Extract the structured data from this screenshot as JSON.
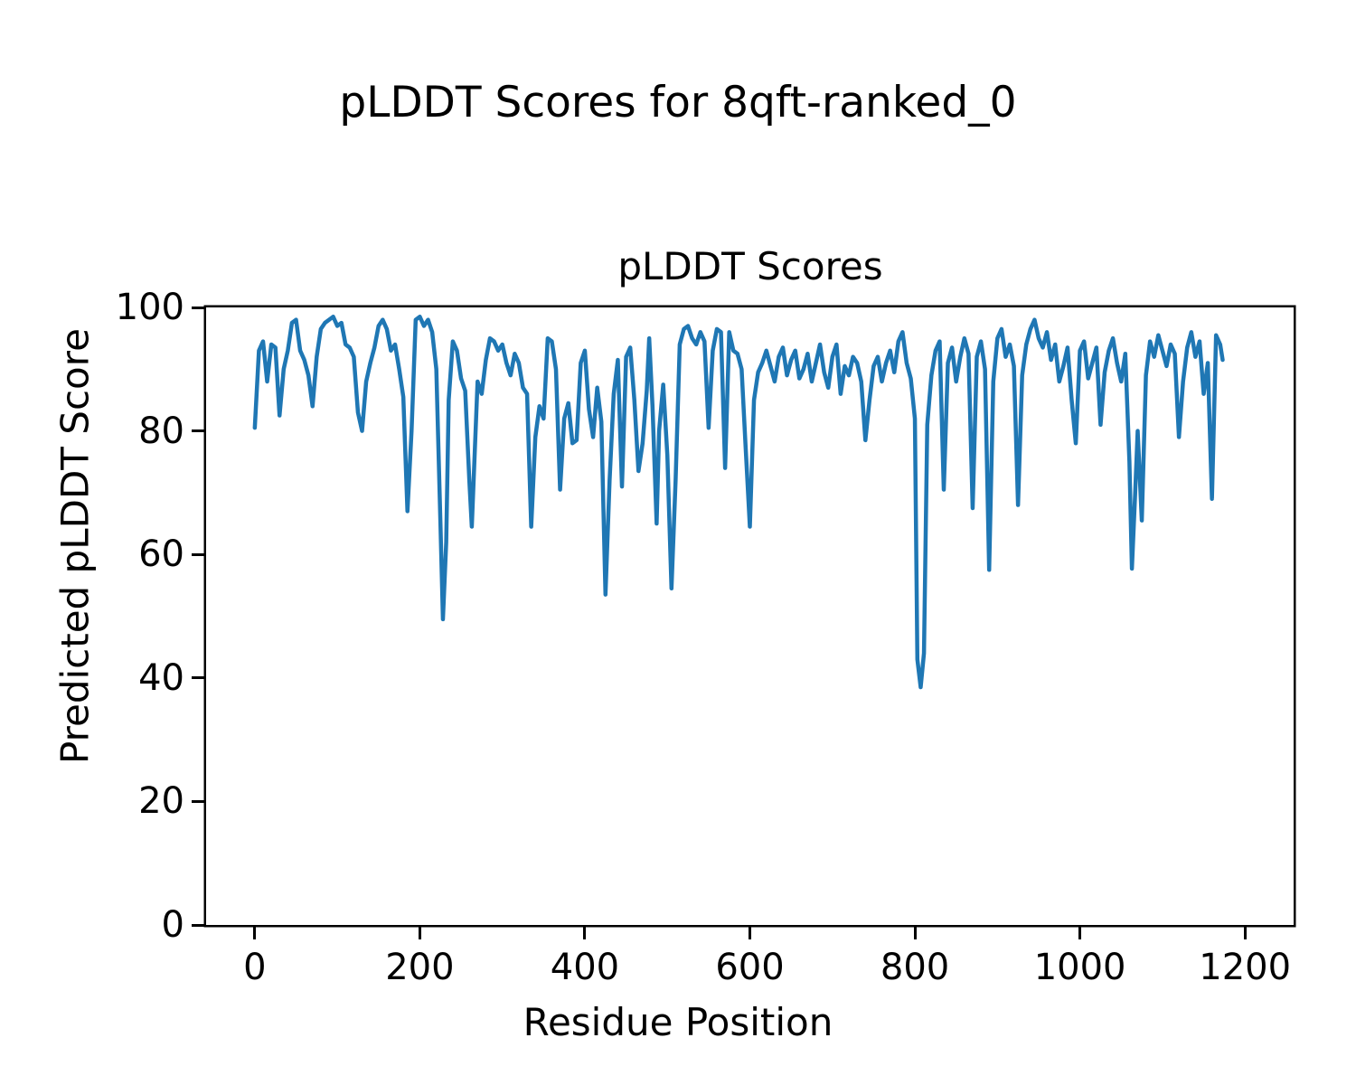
{
  "figure": {
    "suptitle": "pLDDT Scores for 8qft-ranked_0",
    "background_color": "#ffffff",
    "text_color": "#000000"
  },
  "chart_data": {
    "type": "line",
    "title": "pLDDT Scores",
    "xlabel": "Residue Position",
    "ylabel": "Predicted pLDDT Score",
    "x_ticks": [
      0,
      200,
      400,
      600,
      800,
      1000,
      1200
    ],
    "y_ticks": [
      0,
      20,
      40,
      60,
      80,
      100
    ],
    "xlim": [
      -59,
      1259
    ],
    "ylim": [
      0,
      100
    ],
    "grid": false,
    "legend": "none",
    "line_color": "#1f77b4",
    "line_width": 4.5,
    "series": [
      {
        "name": "pLDDT",
        "x": [
          0,
          5,
          10,
          15,
          20,
          25,
          30,
          35,
          40,
          45,
          50,
          55,
          60,
          65,
          70,
          75,
          80,
          85,
          90,
          95,
          100,
          105,
          110,
          115,
          120,
          125,
          130,
          135,
          140,
          145,
          150,
          155,
          160,
          165,
          170,
          175,
          180,
          185,
          190,
          195,
          200,
          205,
          210,
          215,
          220,
          225,
          228,
          232,
          235,
          240,
          245,
          250,
          255,
          260,
          263,
          267,
          270,
          275,
          280,
          285,
          290,
          295,
          300,
          305,
          310,
          315,
          320,
          325,
          330,
          335,
          340,
          345,
          350,
          355,
          360,
          365,
          370,
          375,
          380,
          385,
          390,
          395,
          400,
          405,
          410,
          415,
          420,
          425,
          430,
          435,
          440,
          445,
          450,
          455,
          460,
          465,
          470,
          475,
          478,
          482,
          487,
          490,
          495,
          500,
          505,
          510,
          515,
          520,
          525,
          530,
          535,
          540,
          545,
          550,
          555,
          560,
          565,
          570,
          575,
          580,
          585,
          590,
          595,
          600,
          605,
          610,
          615,
          620,
          625,
          630,
          635,
          640,
          645,
          650,
          655,
          660,
          665,
          670,
          675,
          680,
          685,
          690,
          695,
          700,
          705,
          710,
          715,
          720,
          725,
          730,
          735,
          740,
          745,
          750,
          755,
          760,
          765,
          770,
          775,
          780,
          785,
          790,
          795,
          800,
          803,
          807,
          811,
          815,
          820,
          825,
          830,
          835,
          840,
          845,
          850,
          855,
          860,
          865,
          870,
          875,
          880,
          885,
          890,
          895,
          900,
          905,
          910,
          915,
          920,
          925,
          930,
          935,
          940,
          945,
          950,
          955,
          960,
          965,
          970,
          975,
          980,
          985,
          990,
          995,
          1000,
          1005,
          1010,
          1015,
          1020,
          1025,
          1030,
          1035,
          1040,
          1045,
          1050,
          1055,
          1060,
          1063,
          1067,
          1070,
          1075,
          1080,
          1085,
          1090,
          1095,
          1100,
          1105,
          1110,
          1115,
          1120,
          1125,
          1130,
          1135,
          1140,
          1145,
          1150,
          1155,
          1160,
          1165,
          1170,
          1173
        ],
        "y": [
          80.5,
          93,
          94.5,
          88,
          94,
          93.5,
          82.5,
          90,
          93,
          97.5,
          98,
          93,
          91.5,
          89,
          84,
          92,
          96.5,
          97.5,
          98,
          98.5,
          97,
          97.5,
          94,
          93.5,
          92,
          83,
          80,
          88,
          91,
          93.5,
          97,
          98,
          96.5,
          93,
          94,
          90,
          85.5,
          67,
          80,
          98,
          98.5,
          97,
          98,
          96,
          90,
          65,
          49.5,
          62,
          85,
          94.5,
          93,
          88.5,
          86.5,
          72,
          64.5,
          78,
          88,
          86,
          91.5,
          95,
          94.5,
          93,
          94,
          91,
          89,
          92.5,
          91,
          87,
          86,
          64.5,
          79,
          84,
          82,
          95,
          94.5,
          90,
          70.5,
          82,
          84.5,
          78,
          78.5,
          91,
          93,
          83.5,
          79,
          87,
          81.5,
          53.5,
          72,
          86,
          91.5,
          71,
          92,
          93.5,
          85,
          73.5,
          78,
          86.5,
          95,
          84,
          65,
          80,
          87.5,
          76,
          54.5,
          72,
          94,
          96.5,
          97,
          95,
          94,
          96,
          94.5,
          80.5,
          93,
          96.5,
          96,
          74,
          96,
          93,
          92.5,
          90,
          77,
          64.5,
          85,
          89.5,
          91,
          93,
          90.5,
          88,
          92,
          93.5,
          89,
          91.5,
          93,
          88.5,
          90,
          92.5,
          88,
          91,
          94,
          89.5,
          87,
          92,
          94,
          86,
          90.5,
          89,
          92,
          91,
          88,
          78.5,
          85,
          90.5,
          92,
          88,
          91,
          93,
          89.5,
          94.5,
          96,
          91,
          88.5,
          82,
          43,
          38.5,
          44,
          81,
          89,
          93,
          94.5,
          70.5,
          91,
          93.5,
          88,
          92,
          95,
          92.5,
          67.5,
          92,
          94.5,
          90,
          57.5,
          88,
          95,
          96.5,
          92,
          94,
          90.5,
          68,
          89,
          94,
          96.5,
          98,
          95,
          93.5,
          96,
          91.5,
          94,
          88,
          90.5,
          93.5,
          85,
          78,
          93,
          94.5,
          88.5,
          91,
          93.5,
          81,
          89.5,
          93,
          95,
          91,
          88,
          92.5,
          75,
          57.7,
          70,
          80,
          65.5,
          89,
          94.5,
          92,
          95.5,
          93,
          90.5,
          94,
          92.5,
          79,
          88,
          93.5,
          96,
          92,
          94.5,
          86,
          91,
          69,
          95.5,
          94,
          91.5
        ]
      }
    ]
  }
}
